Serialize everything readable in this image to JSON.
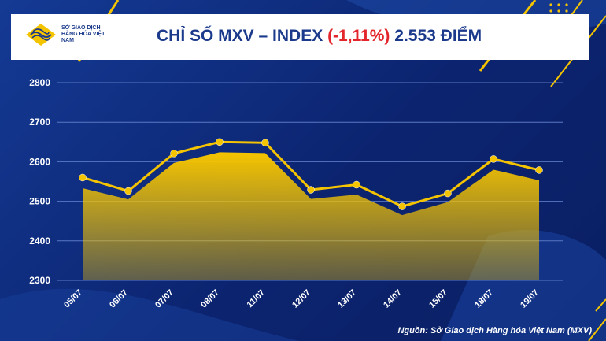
{
  "header": {
    "logo_text": "SỞ GIAO DỊCH HÀNG HÓA VIỆT NAM"
  },
  "chart_data": {
    "type": "area",
    "title_main": "CHỈ SỐ MXV – INDEX",
    "title_change": "(-1,11%)",
    "title_value": "2.553 ĐIỂM",
    "source": "Nguồn: Sở Giao dịch Hàng hóa Việt Nam (MXV)",
    "categories": [
      "05/07",
      "06/07",
      "07/07",
      "08/07",
      "11/07",
      "12/07",
      "13/07",
      "14/07",
      "15/07",
      "18/07",
      "19/07"
    ],
    "series": [
      {
        "values": [
          2533,
          2505,
          2597,
          2624,
          2622,
          2506,
          2517,
          2465,
          2498,
          2580,
          2553
        ]
      },
      {
        "values": [
          2560,
          2526,
          2621,
          2650,
          2648,
          2529,
          2542,
          2487,
          2520,
          2607,
          2579
        ]
      }
    ],
    "ylim": [
      2300,
      2800
    ],
    "yticks": [
      2300,
      2400,
      2500,
      2600,
      2700,
      2800
    ],
    "grid": true,
    "colors": {
      "area": "#f5c400",
      "line": "#f5c400",
      "marker": "#f5c400",
      "grid": "#5a78c4",
      "background": "#0d2a7a"
    }
  }
}
